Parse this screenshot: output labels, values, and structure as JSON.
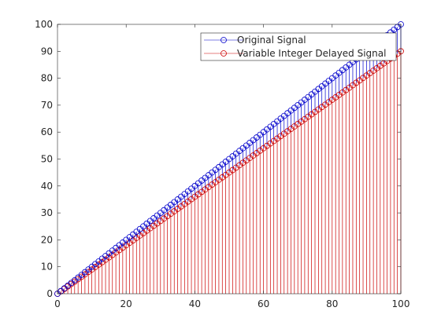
{
  "chart_data": {
    "type": "stem",
    "xlim": [
      0,
      100
    ],
    "ylim": [
      0,
      100
    ],
    "x_ticks": [
      "0",
      "20",
      "40",
      "60",
      "80",
      "100"
    ],
    "y_ticks": [
      "0",
      "10",
      "20",
      "30",
      "40",
      "50",
      "60",
      "70",
      "80",
      "90",
      "100"
    ],
    "legend_position": "top-right",
    "series": [
      {
        "name": "Original Signal",
        "color": "#0000cc",
        "marker": "circle",
        "x_start": 0,
        "x_end": 100,
        "rule": "y = x"
      },
      {
        "name": "Variable Integer Delayed Signal",
        "color": "#cc0000",
        "marker": "circle",
        "x_start": 0,
        "x_end": 100,
        "rule": "y = 0.9 * x (approx.)"
      }
    ]
  }
}
